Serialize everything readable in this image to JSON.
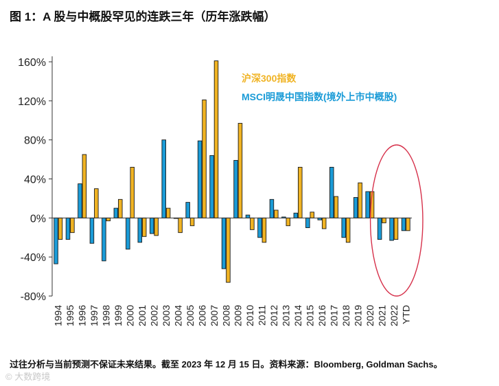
{
  "figure": {
    "title": "图 1：A 股与中概股罕见的连跌三年（历年涨跌幅）",
    "footnote": "过往分析与当前预测不保证未来结果。截至 2023 年 12 月 15 日。资料来源：Bloomberg, Goldman Sachs。",
    "watermark": "© 大数跨境"
  },
  "chart_data": {
    "type": "bar",
    "categories": [
      "1994",
      "1995",
      "1996",
      "1997",
      "1998",
      "1999",
      "2000",
      "2001",
      "2002",
      "2003",
      "2004",
      "2005",
      "2006",
      "2007",
      "2008",
      "2009",
      "2010",
      "2011",
      "2012",
      "2013",
      "2014",
      "2015",
      "2016",
      "2017",
      "2018",
      "2019",
      "2020",
      "2021",
      "2022",
      "YTD"
    ],
    "series": [
      {
        "name": "MSCI明晟中国指数(境外上市中概股)",
        "color": "#1a9bd7",
        "values": [
          -47,
          -22,
          35,
          -26,
          -44,
          10,
          -32,
          -25,
          -16,
          80,
          0,
          16,
          79,
          64,
          -52,
          59,
          3,
          -20,
          19,
          1,
          5,
          -10,
          -2,
          52,
          -20,
          21,
          27,
          -22,
          -23,
          -13
        ]
      },
      {
        "name": "沪深300指数",
        "color": "#f0b323",
        "values": [
          -22,
          -15,
          65,
          30,
          -3,
          19,
          52,
          -19,
          -18,
          10,
          -15,
          -8,
          121,
          161,
          -66,
          97,
          -12,
          -25,
          8,
          -8,
          52,
          6,
          -11,
          22,
          -25,
          36,
          27,
          -5,
          -22,
          -13
        ]
      }
    ],
    "ylim": [
      -80,
      160
    ],
    "yticks": [
      -80,
      -40,
      0,
      40,
      80,
      120,
      160
    ],
    "tick_labels": [
      "-80%",
      "-40%",
      "0%",
      "40%",
      "80%",
      "120%",
      "160%"
    ],
    "legend_position": "top-right",
    "annotation": "red ellipse highlighting 2021, 2022 and YTD"
  }
}
